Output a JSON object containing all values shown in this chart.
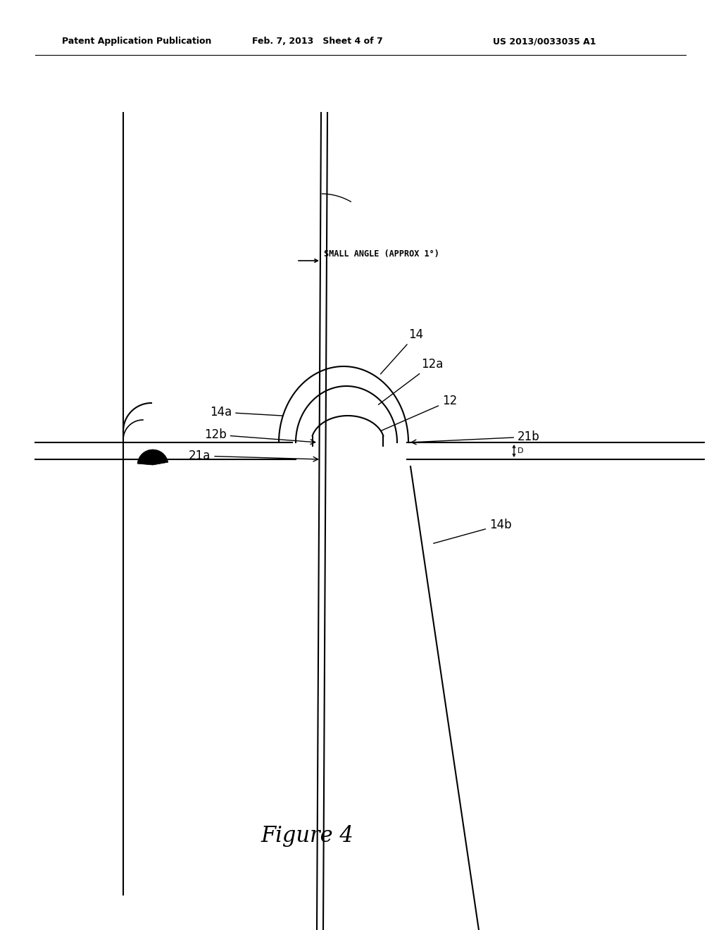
{
  "bg_color": "#ffffff",
  "line_color": "#000000",
  "header_left": "Patent Application Publication",
  "header_mid": "Feb. 7, 2013   Sheet 4 of 7",
  "header_right": "US 2013/0033035 A1",
  "figure_label": "Figure 4",
  "small_angle_label": "SMALL ANGLE (APPROX 1°)"
}
